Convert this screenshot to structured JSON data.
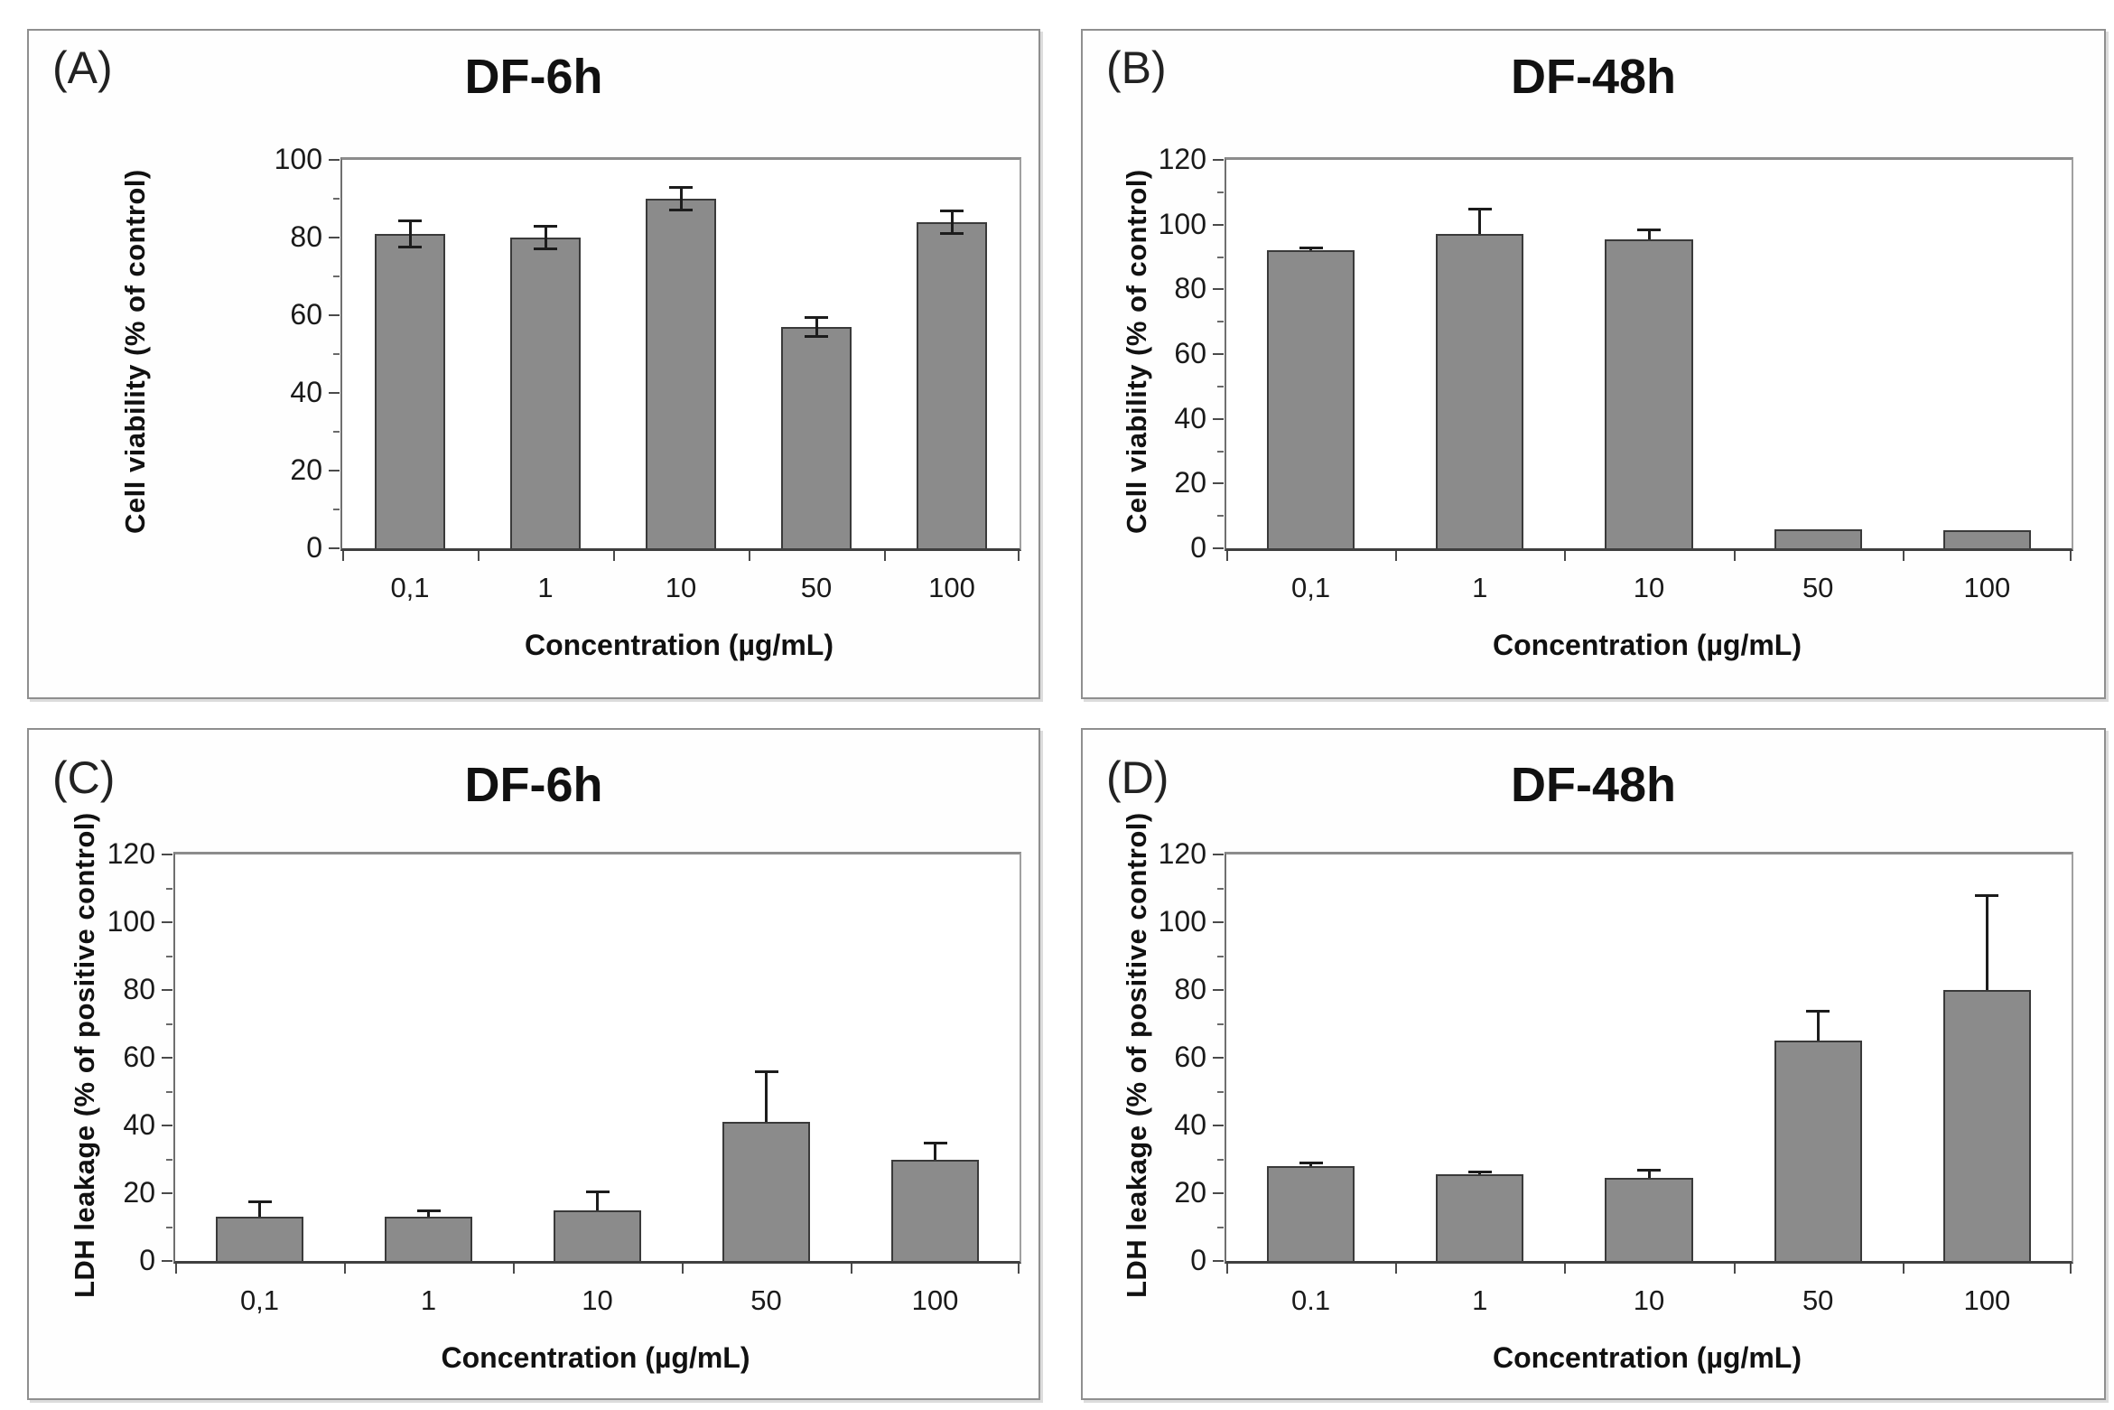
{
  "figure": {
    "description_title": "Cell viability and LDH leakage bar charts",
    "panels": [
      "(A)",
      "(B)",
      "(C)",
      "(D)"
    ]
  },
  "chart_data": [
    {
      "id": "A",
      "panel_label": "(A)",
      "type": "bar",
      "title": "DF-6h",
      "ylabel": "Cell viability (% of control)",
      "xlabel": "Concentration (µg/mL)",
      "categories": [
        "0,1",
        "1",
        "10",
        "50",
        "100"
      ],
      "values": [
        81,
        80,
        90,
        57,
        84
      ],
      "errors": [
        3.5,
        3,
        3,
        2.5,
        3
      ],
      "error_style": "both",
      "ylim": [
        0,
        100
      ],
      "ytick_step": 20,
      "yminor_step": 10,
      "bar_color": "#8b8b8b",
      "grid": "off",
      "legend": "none"
    },
    {
      "id": "B",
      "panel_label": "(B)",
      "type": "bar",
      "title": "DF-48h",
      "ylabel": "Cell viability (% of control)",
      "xlabel": "Concentration (µg/mL)",
      "categories": [
        "0,1",
        "1",
        "10",
        "50",
        "100"
      ],
      "values": [
        92,
        97,
        95.5,
        6,
        5.5
      ],
      "errors": [
        0.8,
        8,
        3,
        0,
        0
      ],
      "error_style": "upper",
      "ylim": [
        0,
        120
      ],
      "ytick_step": 20,
      "yminor_step": 10,
      "bar_color": "#8b8b8b",
      "grid": "off",
      "legend": "none"
    },
    {
      "id": "C",
      "panel_label": "(C)",
      "type": "bar",
      "title": "DF-6h",
      "ylabel": "LDH leakage (% of positive control)",
      "xlabel": "Concentration (µg/mL)",
      "categories": [
        "0,1",
        "1",
        "10",
        "50",
        "100"
      ],
      "values": [
        13,
        13,
        15,
        41,
        30
      ],
      "errors": [
        4.5,
        2,
        5.5,
        15,
        5
      ],
      "error_style": "upper",
      "ylim": [
        0,
        120
      ],
      "ytick_step": 20,
      "yminor_step": 10,
      "bar_color": "#8b8b8b",
      "grid": "off",
      "legend": "none"
    },
    {
      "id": "D",
      "panel_label": "(D)",
      "type": "bar",
      "title": "DF-48h",
      "ylabel": "LDH leakage (% of positive control)",
      "xlabel": "Concentration (µg/mL)",
      "categories": [
        "0.1",
        "1",
        "10",
        "50",
        "100"
      ],
      "values": [
        28,
        25.5,
        24.5,
        65,
        80
      ],
      "errors": [
        1,
        1,
        2.5,
        9,
        28
      ],
      "error_style": "upper",
      "ylim": [
        0,
        120
      ],
      "ytick_step": 20,
      "yminor_step": 10,
      "bar_color": "#8b8b8b",
      "grid": "off",
      "legend": "none"
    }
  ]
}
